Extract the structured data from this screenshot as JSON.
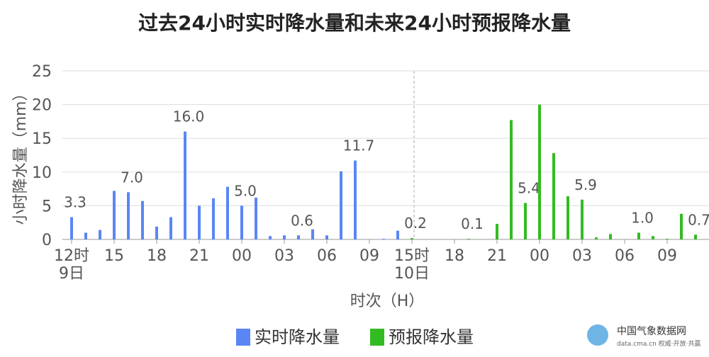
{
  "chart_data": {
    "type": "bar",
    "title": "过去24小时实时降水量和未来24小时预报降水量",
    "y_label": "小时降水量（mm）",
    "x_label": "时次（H）",
    "categories": [
      "12时",
      null,
      null,
      "15",
      null,
      null,
      "18",
      null,
      null,
      "21",
      null,
      null,
      "00",
      null,
      null,
      "03",
      null,
      null,
      "06",
      null,
      null,
      "09",
      null,
      null,
      "15时",
      null,
      null,
      "18",
      null,
      null,
      "21",
      null,
      null,
      "00",
      null,
      null,
      "03",
      null,
      null,
      "06",
      null,
      null,
      "09",
      null,
      null
    ],
    "category_dates": [
      "9日",
      null,
      null,
      null,
      null,
      null,
      null,
      null,
      null,
      null,
      null,
      null,
      null,
      null,
      null,
      null,
      null,
      null,
      null,
      null,
      null,
      null,
      null,
      null,
      "10日",
      null,
      null,
      null,
      null,
      null,
      null,
      null,
      null,
      null,
      null,
      null,
      null,
      null,
      null,
      null,
      null,
      null,
      null,
      null,
      null
    ],
    "series": [
      {
        "name": "实时降水量",
        "color": "#5a86f5",
        "values": [
          3.3,
          1.0,
          1.4,
          7.2,
          7.0,
          5.7,
          1.9,
          3.3,
          16.0,
          5.0,
          6.1,
          7.8,
          5.0,
          6.2,
          0.5,
          0.6,
          0.6,
          1.5,
          0.6,
          10.1,
          11.7,
          0,
          0.1,
          1.3,
          null,
          null,
          null,
          null,
          null,
          null,
          null,
          null,
          null,
          null,
          null,
          null,
          null,
          null,
          null,
          null,
          null,
          null,
          null,
          null,
          null
        ],
        "value_labels": [
          "3.3",
          null,
          null,
          null,
          "7.0",
          null,
          null,
          null,
          "16.0",
          null,
          null,
          null,
          "5.0",
          null,
          null,
          null,
          "0.6",
          null,
          null,
          null,
          "11.7",
          null,
          null,
          null,
          null,
          null,
          null,
          null,
          null,
          null,
          null,
          null,
          null,
          null,
          null,
          null,
          null,
          null,
          null,
          null,
          null,
          null,
          null,
          null,
          null
        ]
      },
      {
        "name": "预报降水量",
        "color": "#33bb22",
        "values": [
          null,
          null,
          null,
          null,
          null,
          null,
          null,
          null,
          null,
          null,
          null,
          null,
          null,
          null,
          null,
          null,
          null,
          null,
          null,
          null,
          null,
          null,
          null,
          null,
          0.2,
          0,
          0,
          0,
          0.1,
          0,
          2.3,
          17.7,
          5.4,
          20.0,
          12.8,
          6.4,
          5.9,
          0.3,
          0.8,
          0,
          1.0,
          0.5,
          0.1,
          3.8,
          0.7
        ],
        "value_labels": [
          null,
          null,
          null,
          null,
          null,
          null,
          null,
          null,
          null,
          null,
          null,
          null,
          null,
          null,
          null,
          null,
          null,
          null,
          null,
          null,
          null,
          null,
          null,
          null,
          "0.2",
          null,
          null,
          null,
          "0.1",
          null,
          null,
          null,
          "5.4",
          null,
          null,
          null,
          "5.9",
          null,
          null,
          null,
          "1.0",
          null,
          null,
          null,
          "0.7"
        ]
      }
    ],
    "ylim": [
      0,
      25
    ],
    "yticks": [
      0,
      5,
      10,
      15,
      20,
      25
    ],
    "grid": true,
    "logo": {
      "name": "中国气象数据网",
      "slogan": "data.cma.cn 权威·开放·共赢"
    }
  }
}
